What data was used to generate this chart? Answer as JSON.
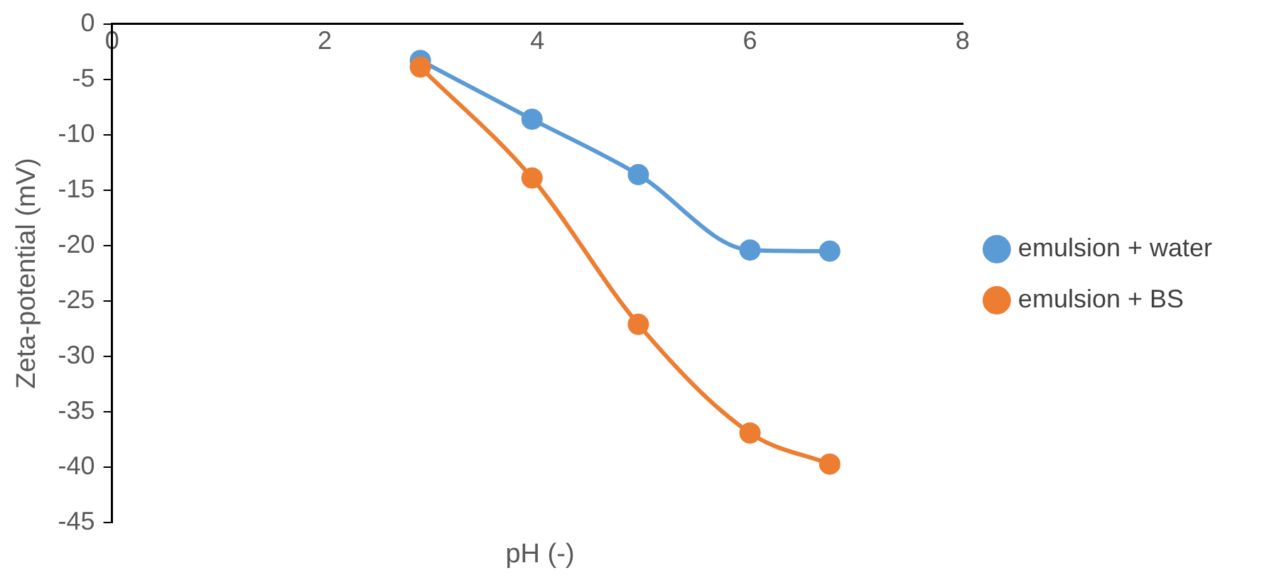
{
  "chart_data": {
    "type": "line",
    "xlabel": "pH (-)",
    "ylabel": "Zeta-potential (mV)",
    "xlim": [
      0,
      8
    ],
    "xticks": [
      0,
      2,
      4,
      6,
      8
    ],
    "ylim": [
      -45,
      0
    ],
    "yticks": [
      -45,
      -40,
      -35,
      -30,
      -25,
      -20,
      -15,
      -10,
      -5,
      0
    ],
    "series": [
      {
        "name": "emulsion + water",
        "color": "#5b9bd5",
        "x": [
          2.9,
          3.95,
          4.95,
          6.0,
          6.75
        ],
        "values": [
          -3.3,
          -8.6,
          -13.6,
          -20.4,
          -20.5
        ]
      },
      {
        "name": "emulsion + BS",
        "color": "#ed7d31",
        "x": [
          2.9,
          3.95,
          4.95,
          6.0,
          6.75
        ],
        "values": [
          -3.9,
          -13.9,
          -27.1,
          -36.9,
          -39.7
        ]
      }
    ],
    "grid": false,
    "legend": "right",
    "marker": "circle",
    "line_style": "solid"
  }
}
